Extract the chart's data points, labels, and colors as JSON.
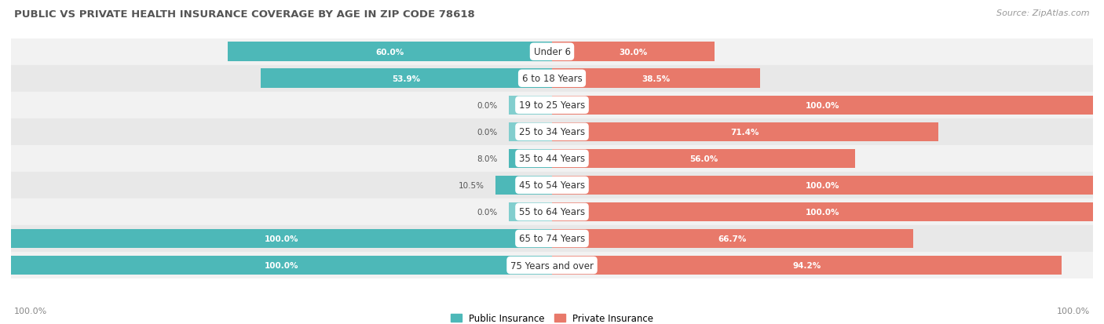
{
  "title": "PUBLIC VS PRIVATE HEALTH INSURANCE COVERAGE BY AGE IN ZIP CODE 78618",
  "source": "Source: ZipAtlas.com",
  "categories": [
    "Under 6",
    "6 to 18 Years",
    "19 to 25 Years",
    "25 to 34 Years",
    "35 to 44 Years",
    "45 to 54 Years",
    "55 to 64 Years",
    "65 to 74 Years",
    "75 Years and over"
  ],
  "public_values": [
    60.0,
    53.9,
    0.0,
    0.0,
    8.0,
    10.5,
    0.0,
    100.0,
    100.0
  ],
  "private_values": [
    30.0,
    38.5,
    100.0,
    71.4,
    56.0,
    100.0,
    100.0,
    66.7,
    94.2
  ],
  "public_color": "#4db8b8",
  "public_color_light": "#82cece",
  "private_color": "#e8796a",
  "private_color_light": "#eeaa9e",
  "public_label": "Public Insurance",
  "private_label": "Private Insurance",
  "row_bg_odd": "#f2f2f2",
  "row_bg_even": "#e8e8e8",
  "title_color": "#555555",
  "source_color": "#999999",
  "axis_label_left": "100.0%",
  "axis_label_right": "100.0%",
  "figsize": [
    14.06,
    4.14
  ],
  "dpi": 100
}
